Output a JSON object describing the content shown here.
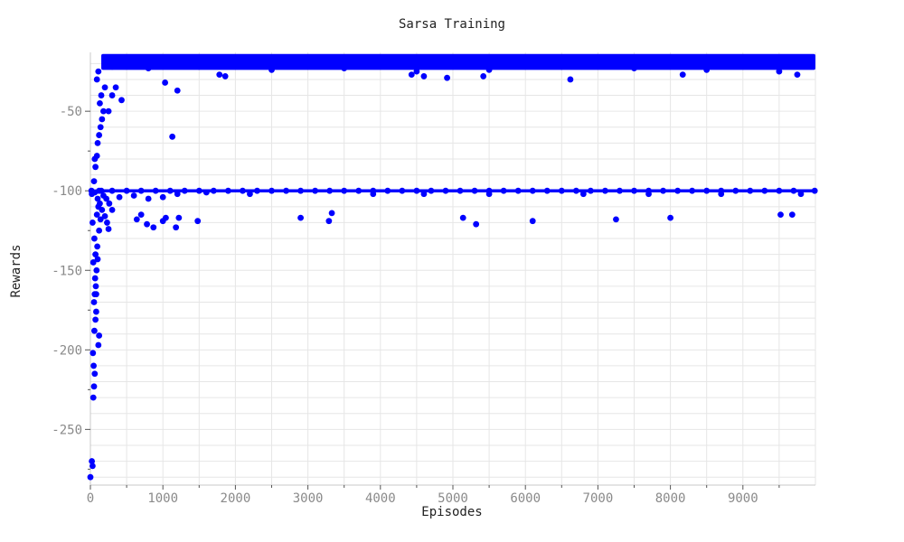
{
  "chart_data": {
    "type": "scatter",
    "title": "Sarsa Training",
    "xlabel": "Episodes",
    "ylabel": "Rewards",
    "xlim": [
      0,
      10000
    ],
    "ylim": [
      -285,
      -13
    ],
    "x_ticks": [
      "0",
      "1000",
      "2000",
      "3000",
      "4000",
      "5000",
      "6000",
      "7000",
      "8000",
      "9000"
    ],
    "y_ticks": [
      "-50",
      "-100",
      "-150",
      "-200",
      "-250"
    ],
    "grid": true,
    "marker_color": "#0000ff",
    "series": [
      {
        "points": [
          [
            0,
            -280
          ],
          [
            20,
            -270
          ],
          [
            30,
            -273
          ],
          [
            40,
            -230
          ],
          [
            50,
            -223
          ],
          [
            60,
            -215
          ],
          [
            45,
            -210
          ],
          [
            35,
            -202
          ],
          [
            55,
            -188
          ],
          [
            70,
            -181
          ],
          [
            80,
            -176
          ],
          [
            50,
            -170
          ],
          [
            60,
            -165
          ],
          [
            75,
            -160
          ],
          [
            65,
            -155
          ],
          [
            85,
            -150
          ],
          [
            40,
            -145
          ],
          [
            70,
            -140
          ],
          [
            95,
            -135
          ],
          [
            55,
            -130
          ],
          [
            120,
            -125
          ],
          [
            30,
            -120
          ],
          [
            140,
            -118
          ],
          [
            90,
            -115
          ],
          [
            160,
            -112
          ],
          [
            110,
            -110
          ],
          [
            130,
            -108
          ],
          [
            100,
            -105
          ],
          [
            20,
            -102
          ],
          [
            60,
            -101
          ],
          [
            150,
            -100
          ],
          [
            180,
            -103
          ],
          [
            220,
            -105
          ],
          [
            260,
            -108
          ],
          [
            300,
            -112
          ],
          [
            200,
            -116
          ],
          [
            230,
            -120
          ],
          [
            250,
            -124
          ],
          [
            110,
            -197
          ],
          [
            120,
            -191
          ],
          [
            80,
            -165
          ],
          [
            100,
            -143
          ],
          [
            15,
            -100
          ],
          [
            120,
            -100
          ],
          [
            300,
            -100
          ],
          [
            500,
            -100
          ],
          [
            700,
            -100
          ],
          [
            900,
            -100
          ],
          [
            1100,
            -100
          ],
          [
            1300,
            -100
          ],
          [
            1500,
            -100
          ],
          [
            1700,
            -100
          ],
          [
            1900,
            -100
          ],
          [
            2100,
            -100
          ],
          [
            2300,
            -100
          ],
          [
            2500,
            -100
          ],
          [
            2700,
            -100
          ],
          [
            2900,
            -100
          ],
          [
            3100,
            -100
          ],
          [
            3300,
            -100
          ],
          [
            3500,
            -100
          ],
          [
            3700,
            -100
          ],
          [
            3900,
            -100
          ],
          [
            4100,
            -100
          ],
          [
            4300,
            -100
          ],
          [
            4500,
            -100
          ],
          [
            4700,
            -100
          ],
          [
            4900,
            -100
          ],
          [
            5100,
            -100
          ],
          [
            5300,
            -100
          ],
          [
            5500,
            -100
          ],
          [
            5700,
            -100
          ],
          [
            5900,
            -100
          ],
          [
            6100,
            -100
          ],
          [
            6300,
            -100
          ],
          [
            6500,
            -100
          ],
          [
            6700,
            -100
          ],
          [
            6900,
            -100
          ],
          [
            7100,
            -100
          ],
          [
            7300,
            -100
          ],
          [
            7500,
            -100
          ],
          [
            7700,
            -100
          ],
          [
            7900,
            -100
          ],
          [
            8100,
            -100
          ],
          [
            8300,
            -100
          ],
          [
            8500,
            -100
          ],
          [
            8700,
            -100
          ],
          [
            8900,
            -100
          ],
          [
            9100,
            -100
          ],
          [
            9300,
            -100
          ],
          [
            9500,
            -100
          ],
          [
            9700,
            -100
          ],
          [
            9990,
            -100
          ],
          [
            400,
            -104
          ],
          [
            600,
            -103
          ],
          [
            800,
            -105
          ],
          [
            1000,
            -104
          ],
          [
            1200,
            -102
          ],
          [
            1600,
            -101
          ],
          [
            2200,
            -102
          ],
          [
            3900,
            -102
          ],
          [
            4600,
            -102
          ],
          [
            5500,
            -102
          ],
          [
            6800,
            -102
          ],
          [
            7700,
            -102
          ],
          [
            8700,
            -102
          ],
          [
            9800,
            -102
          ],
          [
            640,
            -118
          ],
          [
            700,
            -115
          ],
          [
            780,
            -121
          ],
          [
            870,
            -123
          ],
          [
            1000,
            -119
          ],
          [
            1040,
            -117
          ],
          [
            1180,
            -123
          ],
          [
            1220,
            -117
          ],
          [
            1480,
            -119
          ],
          [
            2900,
            -117
          ],
          [
            3290,
            -119
          ],
          [
            3330,
            -114
          ],
          [
            5140,
            -117
          ],
          [
            5320,
            -121
          ],
          [
            6100,
            -119
          ],
          [
            7250,
            -118
          ],
          [
            8000,
            -117
          ],
          [
            9520,
            -115
          ],
          [
            9680,
            -115
          ],
          [
            50,
            -94
          ],
          [
            70,
            -85
          ],
          [
            60,
            -80
          ],
          [
            90,
            -78
          ],
          [
            100,
            -70
          ],
          [
            120,
            -65
          ],
          [
            140,
            -60
          ],
          [
            160,
            -55
          ],
          [
            180,
            -50
          ],
          [
            130,
            -45
          ],
          [
            150,
            -40
          ],
          [
            200,
            -35
          ],
          [
            90,
            -30
          ],
          [
            110,
            -25
          ],
          [
            250,
            -50
          ],
          [
            300,
            -40
          ],
          [
            350,
            -35
          ],
          [
            430,
            -43
          ],
          [
            1130,
            -66
          ],
          [
            1860,
            -28
          ],
          [
            1030,
            -32
          ],
          [
            1200,
            -37
          ],
          [
            200,
            -20
          ],
          [
            350,
            -18
          ],
          [
            500,
            -17
          ],
          [
            700,
            -18
          ],
          [
            900,
            -17
          ],
          [
            1100,
            -18
          ],
          [
            1300,
            -19
          ],
          [
            1500,
            -17
          ],
          [
            1700,
            -18
          ],
          [
            1900,
            -17
          ],
          [
            2100,
            -18
          ],
          [
            2300,
            -17
          ],
          [
            2500,
            -18
          ],
          [
            2700,
            -17
          ],
          [
            2900,
            -18
          ],
          [
            3100,
            -17
          ],
          [
            3300,
            -18
          ],
          [
            3500,
            -17
          ],
          [
            3700,
            -18
          ],
          [
            3900,
            -17
          ],
          [
            4100,
            -18
          ],
          [
            4300,
            -17
          ],
          [
            4500,
            -18
          ],
          [
            4700,
            -17
          ],
          [
            4900,
            -18
          ],
          [
            5100,
            -17
          ],
          [
            5300,
            -18
          ],
          [
            5500,
            -17
          ],
          [
            5700,
            -18
          ],
          [
            5900,
            -17
          ],
          [
            6100,
            -18
          ],
          [
            6300,
            -17
          ],
          [
            6500,
            -18
          ],
          [
            6700,
            -17
          ],
          [
            6900,
            -18
          ],
          [
            7100,
            -17
          ],
          [
            7300,
            -18
          ],
          [
            7500,
            -17
          ],
          [
            7700,
            -18
          ],
          [
            7900,
            -17
          ],
          [
            8100,
            -18
          ],
          [
            8300,
            -17
          ],
          [
            8500,
            -18
          ],
          [
            8700,
            -17
          ],
          [
            8900,
            -18
          ],
          [
            9100,
            -17
          ],
          [
            9300,
            -18
          ],
          [
            9500,
            -17
          ],
          [
            9700,
            -18
          ],
          [
            9900,
            -17
          ],
          [
            300,
            -22
          ],
          [
            800,
            -23
          ],
          [
            1500,
            -22
          ],
          [
            2500,
            -24
          ],
          [
            3500,
            -23
          ],
          [
            4500,
            -25
          ],
          [
            5500,
            -24
          ],
          [
            6500,
            -22
          ],
          [
            7500,
            -23
          ],
          [
            8500,
            -24
          ],
          [
            9500,
            -25
          ],
          [
            1780,
            -27
          ],
          [
            4430,
            -27
          ],
          [
            4600,
            -28
          ],
          [
            4920,
            -29
          ],
          [
            5420,
            -28
          ],
          [
            6620,
            -30
          ],
          [
            8170,
            -27
          ],
          [
            9750,
            -27
          ]
        ]
      }
    ],
    "bands": [
      {
        "x_from": 150,
        "x_to": 10000,
        "y_from": -24,
        "y_to": -14
      },
      {
        "x_from": 60,
        "x_to": 10000,
        "y_from": -101,
        "y_to": -99
      }
    ]
  }
}
